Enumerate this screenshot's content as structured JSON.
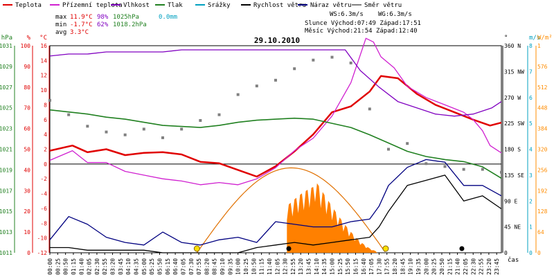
{
  "legend": [
    {
      "label": "Teplota",
      "color": "#e00000"
    },
    {
      "label": "Přízemní teplota",
      "color": "#d020d0"
    },
    {
      "label": "Vlhkost",
      "color": "#8000c0"
    },
    {
      "label": "Tlak",
      "color": "#208020"
    },
    {
      "label": "Srážky",
      "color": "#00a0c0"
    },
    {
      "label": "Rychlost větru",
      "color": "#000000"
    },
    {
      "label": "Náraz větru",
      "color": "#000080"
    },
    {
      "label": "Směr větru",
      "color": "#808080"
    }
  ],
  "stats": {
    "max": {
      "label": "max",
      "temp": "11.9°C",
      "hum": "98%",
      "press": "1025hPa",
      "rain": "0.0mm"
    },
    "min": {
      "label": "min",
      "temp": "-1.7°C",
      "hum": "62%",
      "press": "1018.2hPa"
    },
    "avg": {
      "label": "avg",
      "temp": "3.3°C"
    }
  },
  "info": {
    "ws": "WS:6.3m/s",
    "wg": "WG:6.3m/s",
    "sun": "Slunce Východ:07:49  Západ:17:51",
    "moon": "Měsíc  Východ:21:54  Západ:12:40"
  },
  "chart_data": {
    "type": "line",
    "title": "29.10.2010",
    "xlabel": "čas",
    "x_ticks": [
      "00:00",
      "00:25",
      "00:50",
      "01:15",
      "01:40",
      "02:05",
      "02:30",
      "02:55",
      "03:20",
      "03:45",
      "04:10",
      "04:35",
      "05:00",
      "05:25",
      "05:50",
      "06:15",
      "06:40",
      "07:05",
      "07:30",
      "07:55",
      "08:20",
      "08:45",
      "09:10",
      "09:35",
      "10:00",
      "10:25",
      "10:50",
      "11:15",
      "11:40",
      "12:05",
      "12:30",
      "12:55",
      "13:20",
      "13:45",
      "14:10",
      "14:35",
      "15:00",
      "15:25",
      "15:50",
      "16:15",
      "16:40",
      "17:05",
      "17:30",
      "17:55",
      "18:20",
      "18:45",
      "19:10",
      "19:35",
      "20:00",
      "20:25",
      "20:50",
      "21:15",
      "21:40",
      "22:05",
      "22:30",
      "22:55",
      "23:20",
      "23:45"
    ],
    "axes": {
      "hPa": {
        "unit": "hPa",
        "ticks": [
          "1031",
          "1029",
          "1027",
          "1025",
          "1023",
          "1021",
          "1019",
          "1017",
          "1015",
          "1013",
          "1011"
        ]
      },
      "pct": {
        "unit": "%",
        "ticks": [
          "100",
          "90",
          "80",
          "70",
          "60",
          "50",
          "40",
          "30",
          "20",
          "10",
          "0"
        ]
      },
      "temp": {
        "unit": "°C",
        "ticks": [
          "16",
          "14",
          "12",
          "10",
          "8",
          "6",
          "4",
          "2",
          "0",
          "-2",
          "-4",
          "-6",
          "-8",
          "-10",
          "-12"
        ]
      },
      "dir": {
        "unit": "°",
        "ticks": [
          "360 N",
          "315 NW",
          "270 W",
          "225 SW",
          "180 S",
          "135 SE",
          "90 E",
          "45 NE",
          "0"
        ]
      },
      "ms": {
        "unit": "m/s",
        "ticks": [
          "8",
          "7",
          "6",
          "5",
          "4",
          "3",
          "2",
          "1",
          "0"
        ]
      },
      "wm2": {
        "unit": "W/m²",
        "ticks": [
          "1",
          "576",
          "512",
          "448",
          "384",
          "320",
          "256",
          "192",
          "128",
          "64",
          "0"
        ]
      }
    },
    "ylim_temp": [
      -12,
      16
    ],
    "ylim_hPa": [
      1011,
      1031
    ],
    "series": [
      {
        "name": "Teplota",
        "axis": "temp",
        "color": "#e00000",
        "points": [
          [
            0,
            1.8
          ],
          [
            1.2,
            2.5
          ],
          [
            2,
            1.6
          ],
          [
            3,
            2.0
          ],
          [
            4,
            1.2
          ],
          [
            5,
            1.5
          ],
          [
            6,
            1.6
          ],
          [
            7,
            1.3
          ],
          [
            8,
            0.3
          ],
          [
            9,
            0.1
          ],
          [
            10,
            -0.8
          ],
          [
            11,
            -1.7
          ],
          [
            12,
            -0.3
          ],
          [
            13,
            1.7
          ],
          [
            14,
            4.0
          ],
          [
            15,
            7.0
          ],
          [
            16,
            7.8
          ],
          [
            17,
            9.8
          ],
          [
            17.6,
            11.9
          ],
          [
            18.5,
            11.6
          ],
          [
            19.5,
            9.5
          ],
          [
            20.5,
            8.0
          ],
          [
            21.5,
            7.0
          ],
          [
            22.5,
            6.0
          ],
          [
            23.4,
            5.2
          ],
          [
            24,
            5.6
          ]
        ]
      },
      {
        "name": "Přízemní teplota",
        "axis": "temp",
        "color": "#d020d0",
        "points": [
          [
            0,
            0.5
          ],
          [
            1.2,
            1.8
          ],
          [
            2,
            0.2
          ],
          [
            3,
            0.2
          ],
          [
            4,
            -1.0
          ],
          [
            5,
            -1.5
          ],
          [
            6,
            -2.0
          ],
          [
            7,
            -2.3
          ],
          [
            8,
            -2.8
          ],
          [
            9,
            -2.5
          ],
          [
            10,
            -2.8
          ],
          [
            11,
            -2.0
          ],
          [
            12,
            -0.5
          ],
          [
            13,
            1.8
          ],
          [
            14,
            3.5
          ],
          [
            15,
            6.5
          ],
          [
            16,
            11.0
          ],
          [
            16.8,
            17.0
          ],
          [
            17.2,
            16.5
          ],
          [
            17.6,
            14.5
          ],
          [
            18.3,
            13.0
          ],
          [
            19,
            10.5
          ],
          [
            20,
            9.0
          ],
          [
            21,
            8.0
          ],
          [
            22,
            7.0
          ],
          [
            22.5,
            6.0
          ],
          [
            23,
            4.5
          ],
          [
            23.4,
            2.5
          ],
          [
            24,
            1.5
          ]
        ]
      },
      {
        "name": "Vlhkost",
        "axis": "pct",
        "color": "#8000c0",
        "points": [
          [
            0,
            95
          ],
          [
            1,
            96
          ],
          [
            2,
            96
          ],
          [
            3,
            97
          ],
          [
            4,
            97
          ],
          [
            5,
            97
          ],
          [
            6,
            97
          ],
          [
            7,
            98
          ],
          [
            8,
            98
          ],
          [
            9,
            98
          ],
          [
            10,
            98
          ],
          [
            11,
            98
          ],
          [
            12,
            98
          ],
          [
            13,
            98
          ],
          [
            14,
            98
          ],
          [
            15,
            98
          ],
          [
            15.7,
            98
          ],
          [
            16.5,
            88
          ],
          [
            17.5,
            80
          ],
          [
            18.5,
            73
          ],
          [
            19.5,
            70
          ],
          [
            20.5,
            67
          ],
          [
            21.5,
            66
          ],
          [
            22.5,
            67
          ],
          [
            23.5,
            70
          ],
          [
            24,
            73
          ]
        ]
      },
      {
        "name": "Tlak",
        "axis": "hPa",
        "color": "#208020",
        "points": [
          [
            0,
            1024.8
          ],
          [
            1,
            1024.6
          ],
          [
            2,
            1024.4
          ],
          [
            3,
            1024.1
          ],
          [
            4,
            1023.9
          ],
          [
            5,
            1023.6
          ],
          [
            6,
            1023.3
          ],
          [
            7,
            1023.2
          ],
          [
            8,
            1023.1
          ],
          [
            9,
            1023.3
          ],
          [
            10,
            1023.6
          ],
          [
            11,
            1023.8
          ],
          [
            12,
            1023.9
          ],
          [
            13,
            1024.0
          ],
          [
            14,
            1023.9
          ],
          [
            15,
            1023.5
          ],
          [
            16,
            1023.1
          ],
          [
            17,
            1022.4
          ],
          [
            18,
            1021.6
          ],
          [
            19,
            1020.8
          ],
          [
            20,
            1020.3
          ],
          [
            21,
            1020.0
          ],
          [
            22,
            1019.8
          ],
          [
            23,
            1019.3
          ],
          [
            24,
            1018.2
          ]
        ]
      },
      {
        "name": "Rychlost větru",
        "axis": "ms",
        "color": "#000000",
        "points": [
          [
            0,
            0.2
          ],
          [
            1,
            0.2
          ],
          [
            2,
            0.1
          ],
          [
            3,
            0.1
          ],
          [
            4,
            0.1
          ],
          [
            5,
            0.1
          ],
          [
            6,
            0
          ],
          [
            7,
            0
          ],
          [
            8,
            0
          ],
          [
            9,
            0
          ],
          [
            10,
            0
          ],
          [
            11,
            0.2
          ],
          [
            12,
            0.3
          ],
          [
            13,
            0.4
          ],
          [
            14,
            0.3
          ],
          [
            15,
            0.4
          ],
          [
            16,
            0.5
          ],
          [
            17,
            0.6
          ],
          [
            17.5,
            1.0
          ],
          [
            18,
            1.6
          ],
          [
            19,
            2.6
          ],
          [
            20,
            2.8
          ],
          [
            21,
            3.0
          ],
          [
            22,
            2.0
          ],
          [
            23,
            2.2
          ],
          [
            24,
            1.7
          ]
        ]
      },
      {
        "name": "Náraz větru",
        "axis": "ms",
        "color": "#000080",
        "points": [
          [
            0,
            0.5
          ],
          [
            1,
            1.4
          ],
          [
            2,
            1.1
          ],
          [
            3,
            0.6
          ],
          [
            4,
            0.4
          ],
          [
            5,
            0.3
          ],
          [
            6,
            0.8
          ],
          [
            7,
            0.4
          ],
          [
            8,
            0.3
          ],
          [
            9,
            0.5
          ],
          [
            10,
            0.6
          ],
          [
            11,
            0.4
          ],
          [
            12,
            1.2
          ],
          [
            13,
            1.1
          ],
          [
            14,
            1.0
          ],
          [
            15,
            1.0
          ],
          [
            16,
            1.2
          ],
          [
            17,
            1.3
          ],
          [
            17.5,
            1.8
          ],
          [
            18,
            2.6
          ],
          [
            19,
            3.3
          ],
          [
            20,
            3.6
          ],
          [
            21,
            3.5
          ],
          [
            22,
            2.6
          ],
          [
            23,
            2.6
          ],
          [
            24,
            2.2
          ]
        ]
      },
      {
        "name": "Směr větru",
        "axis": "dir",
        "color": "#808080",
        "points": [
          [
            0,
            265
          ],
          [
            1,
            240
          ],
          [
            2,
            220
          ],
          [
            3,
            210
          ],
          [
            4,
            205
          ],
          [
            5,
            215
          ],
          [
            6,
            200
          ],
          [
            7,
            215
          ],
          [
            8,
            230
          ],
          [
            9,
            240
          ],
          [
            10,
            275
          ],
          [
            11,
            290
          ],
          [
            12,
            300
          ],
          [
            13,
            320
          ],
          [
            14,
            335
          ],
          [
            15,
            340
          ],
          [
            16,
            330
          ],
          [
            17,
            250
          ],
          [
            18,
            180
          ],
          [
            19,
            190
          ],
          [
            20,
            155
          ],
          [
            21,
            150
          ],
          [
            22,
            145
          ],
          [
            23,
            145
          ],
          [
            24,
            140
          ]
        ]
      }
    ]
  }
}
